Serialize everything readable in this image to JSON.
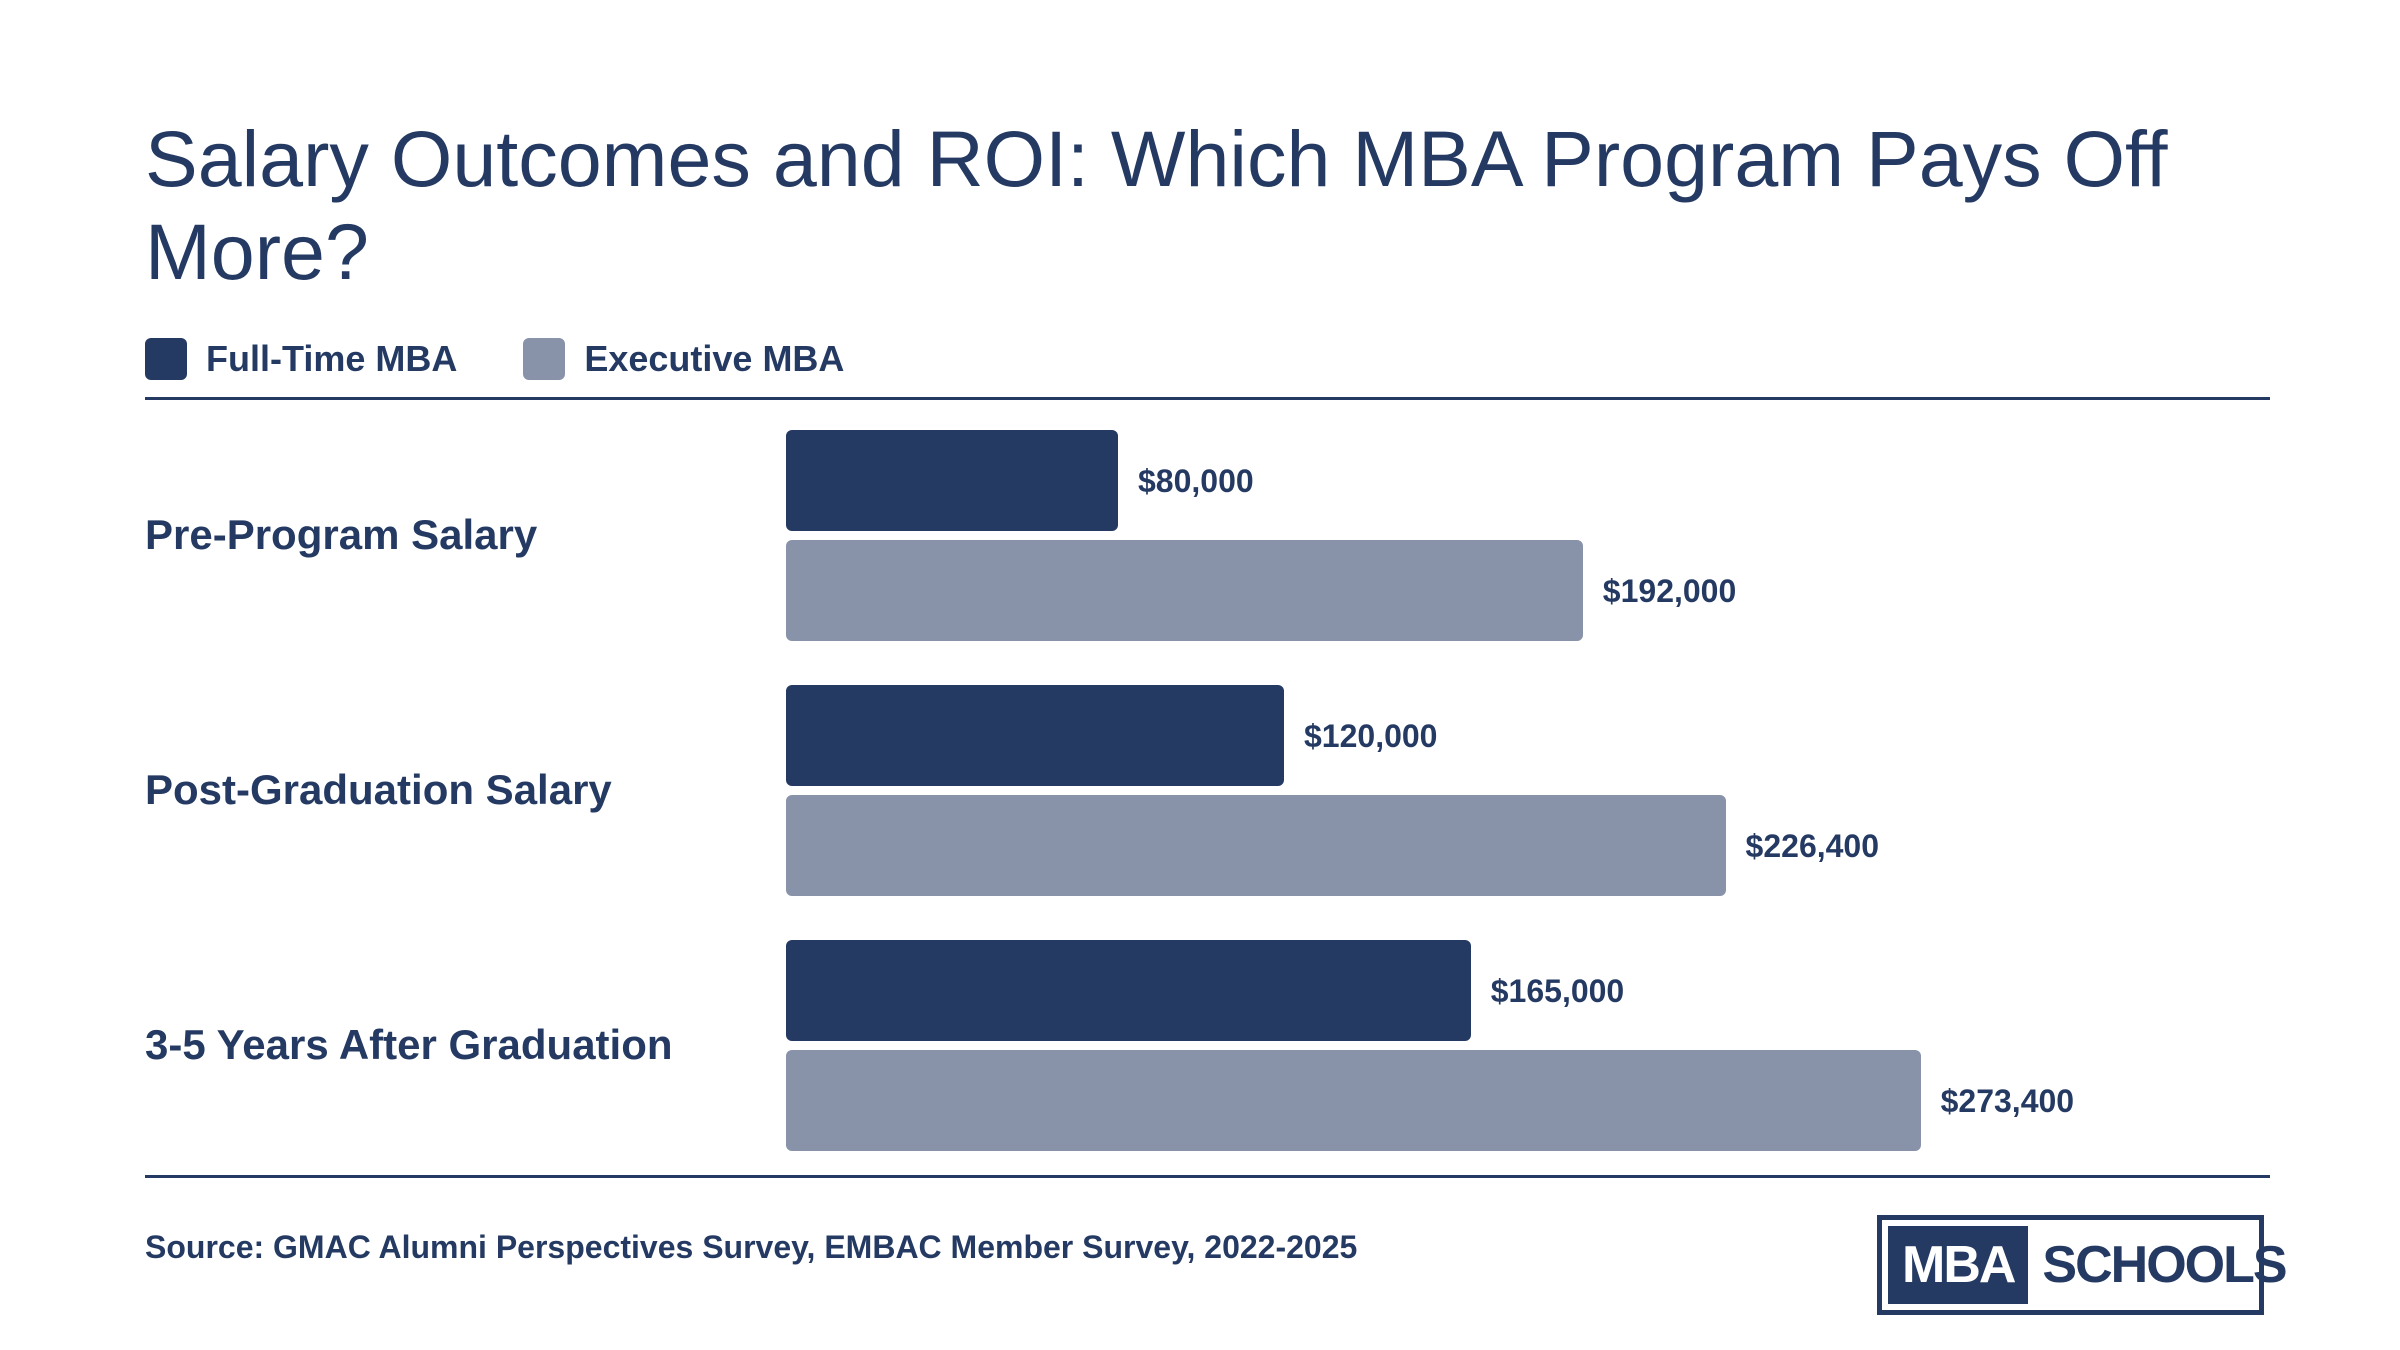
{
  "title": "Salary Outcomes and ROI: Which MBA Program Pays Off More?",
  "source": "Source: GMAC Alumni Perspectives Survey, EMBAC Member Survey, 2022-2025",
  "logo": {
    "part1": "MBA",
    "part2": "SCHOOLS"
  },
  "colors": {
    "text": "#253A63",
    "full_time": "#253A63",
    "executive": "#8892A9"
  },
  "chart_data": {
    "type": "bar",
    "orientation": "horizontal",
    "title": "Salary Outcomes and ROI: Which MBA Program Pays Off More?",
    "categories": [
      "Pre-Program Salary",
      "Post-Graduation Salary",
      "3-5 Years After Graduation"
    ],
    "series": [
      {
        "name": "Full-Time MBA",
        "color": "#253A63",
        "values": [
          80000,
          120000,
          165000
        ],
        "labels": [
          "$80,000",
          "$120,000",
          "$165,000"
        ]
      },
      {
        "name": "Executive MBA",
        "color": "#8892A9",
        "values": [
          192000,
          226400,
          273400
        ],
        "labels": [
          "$192,000",
          "$226,400",
          "$273,400"
        ]
      }
    ],
    "xlim": [
      0,
      300000
    ],
    "grid": false,
    "legend": "top-left"
  }
}
